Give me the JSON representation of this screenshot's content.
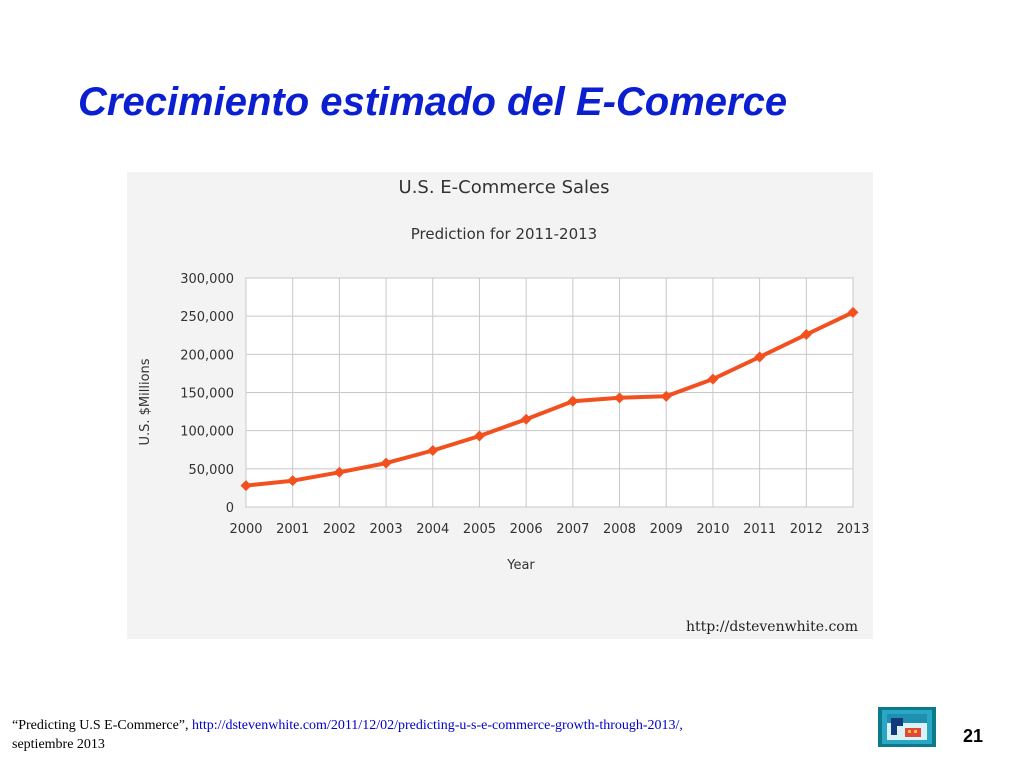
{
  "slide": {
    "title": "Crecimiento estimado del E-Comerce",
    "page_number": "21",
    "footer": {
      "quote": "“Predicting U.S E-Commerce”,",
      "url": "http://dstevenwhite.com/2011/12/02/predicting-u-s-e-commerce-growth-through-2013/,",
      "date": "septiembre 2013"
    },
    "logo_icon": "presentation-logo-icon"
  },
  "chart_data": {
    "type": "line",
    "title": "U.S. E-Commerce Sales",
    "subtitle": "Prediction for 2011-2013",
    "xlabel": "Year",
    "ylabel": "U.S. $Millions",
    "source": "http://dstevenwhite.com",
    "x": [
      "2000",
      "2001",
      "2002",
      "2003",
      "2004",
      "2005",
      "2006",
      "2007",
      "2008",
      "2009",
      "2010",
      "2011",
      "2012",
      "2013"
    ],
    "series": [
      {
        "values": [
          28000,
          34500,
          45500,
          57500,
          74000,
          93000,
          115000,
          138500,
          143000,
          145000,
          167500,
          196500,
          226000,
          255000
        ],
        "color": "#f2501e"
      }
    ],
    "ylim": [
      0,
      300000
    ],
    "yticks": [
      "0",
      "50,000",
      "100,000",
      "150,000",
      "200,000",
      "250,000",
      "300,000"
    ],
    "grid": true,
    "legend": "none",
    "colors": {
      "background": "#f3f3f3",
      "plot": "#ffffff",
      "grid": "#c8c8c8",
      "line": "#f2501e"
    }
  }
}
